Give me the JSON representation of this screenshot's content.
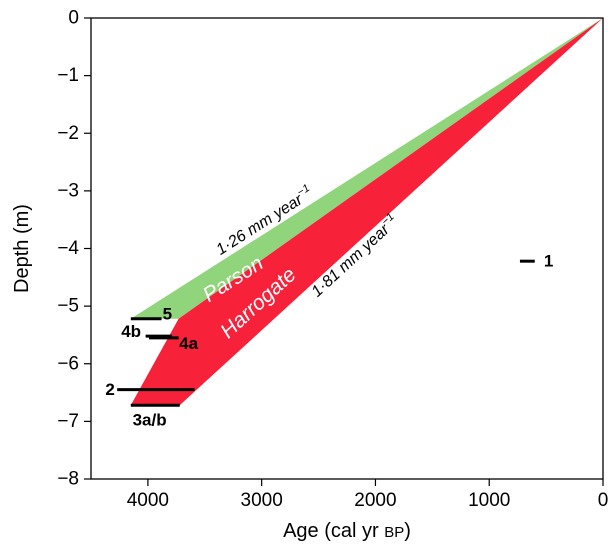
{
  "chart_data": {
    "type": "area",
    "xlabel_main": "Age (cal yr ",
    "xlabel_unit": "BP",
    "xlabel_close": ")",
    "ylabel": "Depth (m)",
    "xlim": [
      4500,
      0
    ],
    "ylim": [
      -8,
      0
    ],
    "x_ticks": [
      4000,
      3000,
      2000,
      1000,
      0
    ],
    "y_ticks": [
      0,
      -1,
      -2,
      -3,
      -4,
      -5,
      -6,
      -7,
      -8
    ],
    "grid": false,
    "regions": [
      {
        "label": "Parson",
        "color": "#90d47c",
        "polygon": [
          [
            0,
            0
          ],
          [
            4150,
            -5.22
          ],
          [
            3730,
            -5.22
          ]
        ]
      },
      {
        "label": "Harrogate",
        "color": "#f7213a",
        "polygon": [
          [
            0,
            0
          ],
          [
            3730,
            -5.22
          ],
          [
            4150,
            -6.72
          ],
          [
            3720,
            -6.72
          ]
        ]
      }
    ],
    "rate_labels": [
      {
        "base": "1·26 mm year",
        "sup": "−1",
        "x": 2950,
        "y": -3.6,
        "angle_from": [
          0,
          0
        ],
        "angle_to": [
          4150,
          -5.22
        ]
      },
      {
        "base": "1·81 mm year",
        "sup": "−1",
        "x": 2150,
        "y": -4.2,
        "angle_from": [
          0,
          0
        ],
        "angle_to": [
          3720,
          -6.72
        ]
      }
    ],
    "samples": [
      {
        "id": "1",
        "x1": 730,
        "x2": 600,
        "y": -4.22,
        "label_x": 520,
        "label_y": -4.22,
        "anchor": "start"
      },
      {
        "id": "5",
        "x1": 4150,
        "x2": 3880,
        "y": -5.22,
        "label_x": 3870,
        "label_y": -5.14,
        "anchor": "start"
      },
      {
        "id": "4b",
        "x1": 4020,
        "x2": 3790,
        "y": -5.52,
        "label_x": 4060,
        "label_y": -5.44,
        "anchor": "end"
      },
      {
        "id": "4a",
        "x1": 3990,
        "x2": 3730,
        "y": -5.55,
        "label_x": 3725,
        "label_y": -5.65,
        "anchor": "start"
      },
      {
        "id": "2",
        "x1": 4270,
        "x2": 3590,
        "y": -6.45,
        "label_x": 4290,
        "label_y": -6.45,
        "anchor": "end"
      },
      {
        "id": "3a/b",
        "x1": 4150,
        "x2": 3720,
        "y": -6.72,
        "label_x": 3985,
        "label_y": -6.98,
        "anchor": "middle"
      }
    ]
  }
}
